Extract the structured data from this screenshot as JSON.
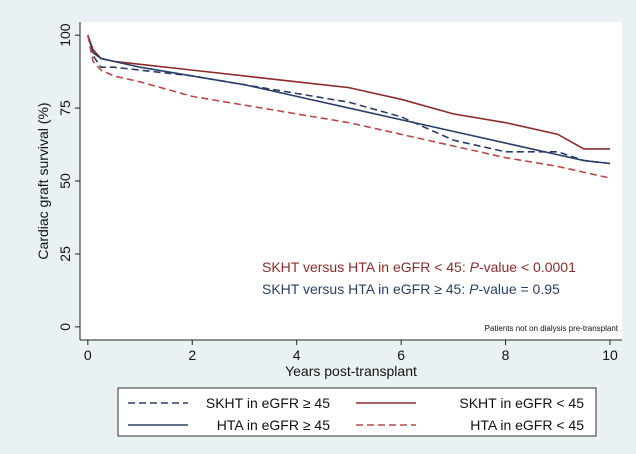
{
  "chart_data": {
    "type": "line",
    "x_label": "Years post-transplant",
    "y_label": "Cardiac graft survival (%)",
    "x": [
      0,
      0.1,
      0.25,
      0.5,
      1,
      2,
      3,
      4,
      5,
      6,
      7,
      8,
      9,
      9.5,
      10
    ],
    "series": [
      {
        "name": "SKHT in eGFR ≥ 45",
        "color": "#2b3f66",
        "style": "dashed",
        "values": [
          100,
          93,
          89,
          89,
          88,
          86,
          83,
          80,
          77,
          72,
          64,
          60,
          60,
          57,
          56
        ]
      },
      {
        "name": "SKHT in eGFR < 45",
        "color": "#8b2b2b",
        "style": "solid",
        "values": [
          100,
          95,
          92,
          91,
          90,
          88,
          86,
          84,
          82,
          78,
          73,
          70,
          66,
          61,
          61
        ]
      },
      {
        "name": "HTA in eGFR ≥ 45",
        "color": "#2b3f66",
        "style": "solid",
        "values": [
          100,
          94,
          92,
          91,
          89,
          86,
          83,
          79,
          75,
          71,
          67,
          63,
          59,
          57,
          56
        ]
      },
      {
        "name": "HTA in eGFR < 45",
        "color": "#b54a4a",
        "style": "dashed",
        "values": [
          100,
          91,
          88,
          86,
          84,
          79,
          76,
          73,
          70,
          66,
          62,
          58,
          55,
          53,
          51
        ]
      }
    ],
    "xlim": [
      -0.15,
      10.23
    ],
    "ylim": [
      -4.5,
      104.5
    ],
    "xticks": [
      0,
      2,
      4,
      6,
      8,
      10
    ],
    "yticks": [
      0,
      25,
      50,
      75,
      100
    ],
    "annotations": [
      {
        "parts": [
          "SKHT versus HTA in eGFR < 45: ",
          "P",
          "-value < 0.0001"
        ],
        "color": "#8b2b2b"
      },
      {
        "parts": [
          "SKHT versus HTA in eGFR  ≥  45: ",
          "P",
          "-value = 0.95"
        ],
        "color": "#2b3f66"
      }
    ],
    "note": "Patients not on dialysis pre-transplant"
  }
}
